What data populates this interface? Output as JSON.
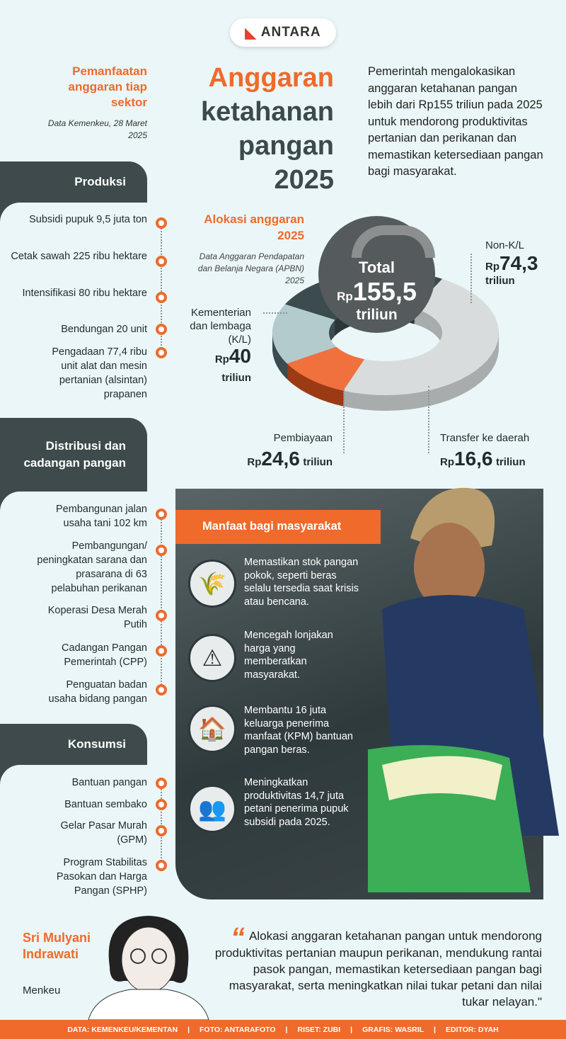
{
  "logo": {
    "text": "ANTARA"
  },
  "header": {
    "sector_title": "Pemanfaatan anggaran tiap sektor",
    "sector_note": "Data Kemenkeu, 28 Maret 2025",
    "title_line1": "Anggaran",
    "title_line2": "ketahanan",
    "title_line3": "pangan",
    "title_line4": "2025",
    "intro": "Pemerintah mengalokasikan anggaran ketahanan pangan lebih dari Rp155 triliun pada 2025 untuk mendorong produktivitas pertanian dan perikanan dan memastikan ketersediaan pangan bagi masyarakat."
  },
  "sections": [
    {
      "title": "Produksi",
      "items": [
        "Subsidi pupuk 9,5 juta ton",
        "Cetak sawah 225 ribu hektare",
        "Intensifikasi 80 ribu hektare",
        "Bendungan 20 unit",
        "Pengadaan 77,4 ribu unit alat dan mesin pertanian (alsintan) prapanen"
      ]
    },
    {
      "title": "Distribusi dan cadangan pangan",
      "items": [
        "Pembangunan jalan usaha tani 102 km",
        "Pembangungan/ peningkatan sarana dan prasarana di 63 pelabuhan perikanan",
        "Koperasi Desa Merah Putih",
        "Cadangan Pangan Pemerintah (CPP)",
        "Penguatan badan usaha bidang pangan"
      ]
    },
    {
      "title": "Konsumsi",
      "items": [
        "Bantuan pangan",
        "Bantuan sembako",
        "Gelar Pasar Murah (GPM)",
        "Program Stabilitas Pasokan dan Harga Pangan (SPHP)"
      ]
    }
  ],
  "allocation": {
    "title": "Alokasi anggaran 2025",
    "note": "Data Anggaran Pendapatan dan Belanja Negara (APBN) 2025",
    "total_label": "Total",
    "currency": "Rp",
    "total_value": "155,5",
    "unit": "triliun"
  },
  "chart_data": {
    "type": "pie",
    "title": "Alokasi anggaran 2025",
    "total": 155.5,
    "unit": "Rp triliun",
    "categories": [
      "Non-K/L",
      "Transfer ke daerah",
      "Pembiayaan",
      "Kementerian dan lembaga (K/L)"
    ],
    "values": [
      74.3,
      16.6,
      24.6,
      40
    ],
    "value_labels": [
      "74,3",
      "16,6",
      "24,6",
      "40"
    ],
    "colors": [
      "#d9dcdc",
      "#f0713d",
      "#b3cbcd",
      "#3c4c4e"
    ],
    "side_colors": [
      "#a9acac",
      "#9c3a15",
      "#3c4c4e",
      "#2b3638"
    ]
  },
  "benefits": {
    "title": "Manfaat bagi masyarakat",
    "items": [
      {
        "icon": "rice-sacks-icon",
        "glyph": "🌾",
        "text": "Memastikan stok pangan pokok, seperti beras selalu tersedia saat krisis atau bencana."
      },
      {
        "icon": "money-warning-icon",
        "glyph": "⚠",
        "text": "Mencegah lonjakan harga yang memberatkan masyarakat."
      },
      {
        "icon": "family-house-icon",
        "glyph": "🏠",
        "text": "Membantu 16 juta keluarga penerima manfaat (KPM) bantuan pangan beras."
      },
      {
        "icon": "farmers-icon",
        "glyph": "👥",
        "text": "Meningkatkan produktivitas 14,7 juta petani penerima pupuk subsidi pada 2025."
      }
    ]
  },
  "quote": {
    "name": "Sri Mulyani Indrawati",
    "role": "Menkeu",
    "text": "Alokasi anggaran ketahanan pangan untuk mendorong produktivitas pertanian maupun perikanan, mendukung rantai pasok pangan, memastikan ketersediaan pangan bagi masyarakat, serta meningkatkan nilai tukar petani dan nilai tukar nelayan.\""
  },
  "footer": [
    "DATA: KEMENKEU/KEMENTAN",
    "FOTO: ANTARAFOTO",
    "RISET: ZUBI",
    "GRAFIS: WASRIL",
    "EDITOR: DYAH"
  ],
  "colors": {
    "accent": "#ef6a2b",
    "dark": "#3e4a4c",
    "background": "#eaf6f7"
  }
}
